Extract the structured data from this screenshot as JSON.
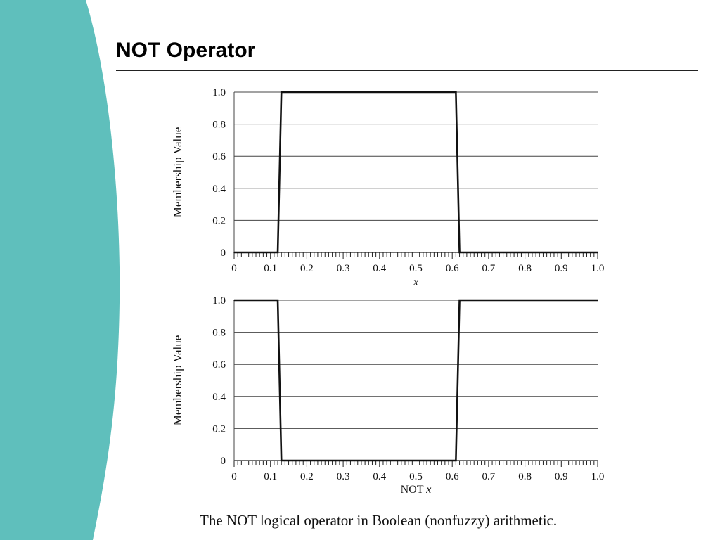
{
  "slide": {
    "title": "NOT Operator",
    "caption": "The NOT logical operator in Boolean (nonfuzzy) arithmetic.",
    "accent_color": "#5fbfbc"
  },
  "chart_data": [
    {
      "type": "line",
      "xlabel": "x",
      "ylabel": "Membership Value",
      "xlim": [
        0,
        1.0
      ],
      "ylim": [
        0,
        1.0
      ],
      "xticks": [
        "0",
        "0.1",
        "0.2",
        "0.3",
        "0.4",
        "0.5",
        "0.6",
        "0.7",
        "0.8",
        "0.9",
        "1.0"
      ],
      "yticks": [
        "0",
        "0.2",
        "0.4",
        "0.6",
        "0.8",
        "1.0"
      ],
      "grid": "horizontal",
      "series": [
        {
          "x": [
            0,
            0.12,
            0.13,
            0.61,
            0.62,
            1.0
          ],
          "y": [
            0,
            0,
            1,
            1,
            0,
            0
          ]
        }
      ]
    },
    {
      "type": "line",
      "xlabel": "NOT x",
      "ylabel": "Membership Value",
      "xlim": [
        0,
        1.0
      ],
      "ylim": [
        0,
        1.0
      ],
      "xticks": [
        "0",
        "0.1",
        "0.2",
        "0.3",
        "0.4",
        "0.5",
        "0.6",
        "0.7",
        "0.8",
        "0.9",
        "1.0"
      ],
      "yticks": [
        "0",
        "0.2",
        "0.4",
        "0.6",
        "0.8",
        "1.0"
      ],
      "grid": "horizontal",
      "series": [
        {
          "x": [
            0,
            0.12,
            0.13,
            0.61,
            0.62,
            1.0
          ],
          "y": [
            1,
            1,
            0,
            0,
            1,
            1
          ]
        }
      ]
    }
  ]
}
